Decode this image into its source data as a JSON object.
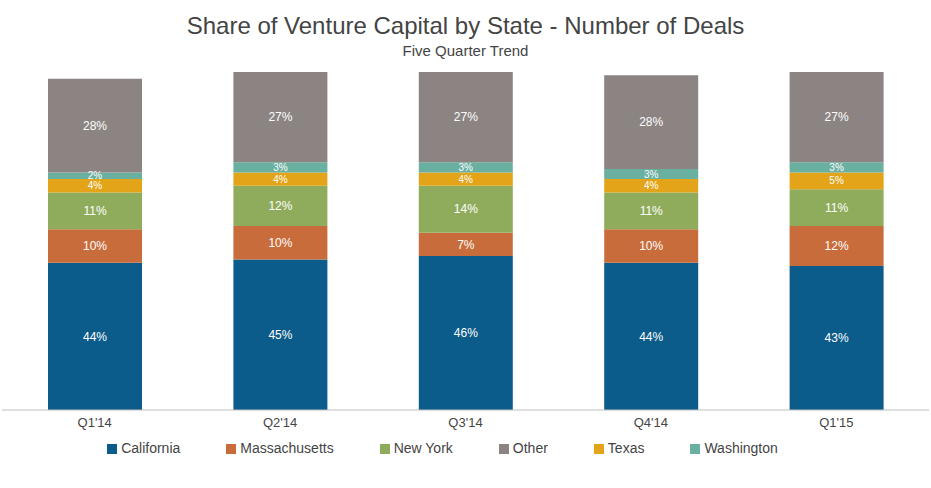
{
  "chart_data": {
    "type": "bar",
    "title": "Share of Venture Capital by State - Number of Deals",
    "subtitle": "Five Quarter Trend",
    "stacked": true,
    "data_labels": true,
    "tick_labels": "x",
    "grid": false,
    "legend": "bottom",
    "ylim": [
      0,
      101
    ],
    "categories": [
      "Q1'14",
      "Q2'14",
      "Q3'14",
      "Q4'14",
      "Q1'15"
    ],
    "series": [
      {
        "name": "California",
        "color": "#0b5c8a",
        "values": [
          44,
          45,
          46,
          44,
          43
        ],
        "value_labels": [
          "44%",
          "45%",
          "46%",
          "44%",
          "43%"
        ]
      },
      {
        "name": "Massachusetts",
        "color": "#c96c3b",
        "values": [
          10,
          10,
          7,
          10,
          12
        ],
        "value_labels": [
          "10%",
          "10%",
          "7%",
          "10%",
          "12%"
        ]
      },
      {
        "name": "New York",
        "color": "#8fac5d",
        "values": [
          11,
          12,
          14,
          11,
          11
        ],
        "value_labels": [
          "11%",
          "12%",
          "14%",
          "11%",
          "11%"
        ]
      },
      {
        "name": "Texas",
        "color": "#e3a419",
        "values": [
          4,
          4,
          4,
          4,
          5
        ],
        "value_labels": [
          "4%",
          "4%",
          "4%",
          "4%",
          "5%"
        ]
      },
      {
        "name": "Washington",
        "color": "#69b0a1",
        "values": [
          2,
          3,
          3,
          3,
          3
        ],
        "value_labels": [
          "2%",
          "3%",
          "3%",
          "3%",
          "3%"
        ]
      },
      {
        "name": "Other",
        "color": "#8b8482",
        "values": [
          28,
          27,
          27,
          28,
          27
        ],
        "value_labels": [
          "28%",
          "27%",
          "27%",
          "28%",
          "27%"
        ]
      }
    ]
  }
}
